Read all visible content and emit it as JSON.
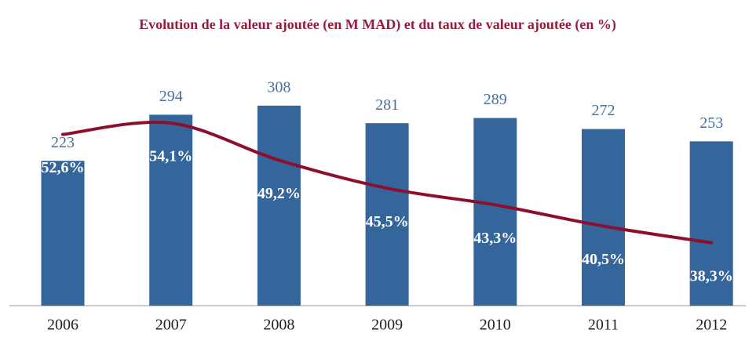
{
  "chart_data": {
    "type": "bar",
    "title": "Evolution de la valeur ajoutée (en M MAD) et du taux de valeur ajoutée (en %)",
    "categories": [
      "2006",
      "2007",
      "2008",
      "2009",
      "2010",
      "2011",
      "2012"
    ],
    "ylim": [
      0,
      350
    ],
    "y2lim": [
      30,
      60
    ],
    "series": [
      {
        "type": "bar",
        "color": "#34659b",
        "values": [
          223,
          294,
          308,
          281,
          289,
          272,
          253
        ]
      },
      {
        "type": "line",
        "axis": "y2",
        "color": "#8c0f2e",
        "values": [
          52.6,
          54.1,
          49.2,
          45.5,
          43.3,
          40.5,
          38.3
        ],
        "value_labels": [
          "52,6%",
          "54,1%",
          "49,2%",
          "45,5%",
          "43,3%",
          "40,5%",
          "38,3%"
        ]
      }
    ]
  }
}
